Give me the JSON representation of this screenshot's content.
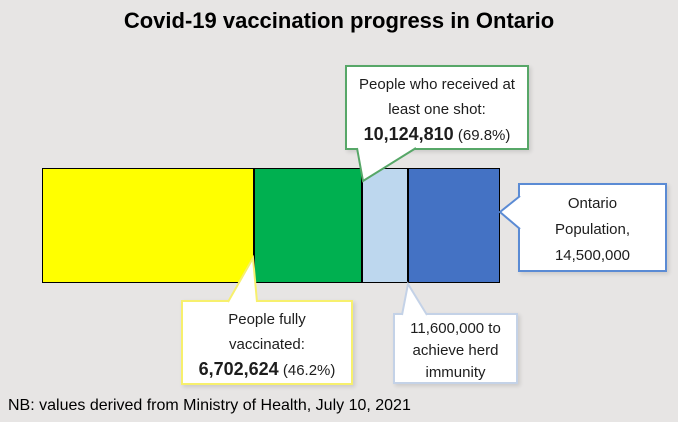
{
  "title": "Covid-19 vaccination progress in Ontario",
  "footer_note": "NB: values derived from Ministry of Health, July 10, 2021",
  "colors": {
    "background": "#E7E5E4",
    "bar_outline": "#000000"
  },
  "callouts": {
    "one_shot": {
      "lines": [
        "People who received at",
        "least one shot:"
      ],
      "value": "10,124,810",
      "suffix": " (69.8%)",
      "border_color": "#57A768"
    },
    "population": {
      "lines": [
        "Ontario",
        "Population,",
        "14,500,000"
      ],
      "border_color": "#5B8BD4"
    },
    "fully_vaccinated": {
      "lines": [
        "People fully",
        "vaccinated:"
      ],
      "value": "6,702,624",
      "suffix": " (46.2%)",
      "border_color": "#F7F06D"
    },
    "herd_immunity": {
      "lines": [
        "11,600,000 to",
        "achieve herd",
        "immunity"
      ],
      "border_color": "#C4D2E7"
    }
  },
  "chart_data": {
    "type": "bar",
    "variant": "horizontal stacked progress bar with callout annotations",
    "title": "Covid-19 vaccination progress in Ontario",
    "x_axis": {
      "min": 0,
      "max": 14500000,
      "visible": false
    },
    "total_population": 14500000,
    "milestones": [
      {
        "label": "People fully vaccinated",
        "value": 6702624,
        "percent_of_population": 46.2
      },
      {
        "label": "People who received at least one shot",
        "value": 10124810,
        "percent_of_population": 69.8
      },
      {
        "label": "Number needed to achieve herd immunity",
        "value": 11600000
      },
      {
        "label": "Ontario Population",
        "value": 14500000
      }
    ],
    "segments": [
      {
        "id": "fully-vaccinated",
        "from": 0,
        "to": 6702624,
        "color": "#FFFF00"
      },
      {
        "id": "one-shot-not-fully-vaccinated",
        "from": 6702624,
        "to": 10124810,
        "color": "#00B050"
      },
      {
        "id": "remaining-to-herd-immunity",
        "from": 10124810,
        "to": 11600000,
        "color": "#BDD7EE"
      },
      {
        "id": "rest-of-population",
        "from": 11600000,
        "to": 14500000,
        "color": "#4472C4"
      }
    ],
    "legend": "none",
    "grid": false,
    "source_note": "NB: values derived from Ministry of Health, July 10, 2021"
  }
}
